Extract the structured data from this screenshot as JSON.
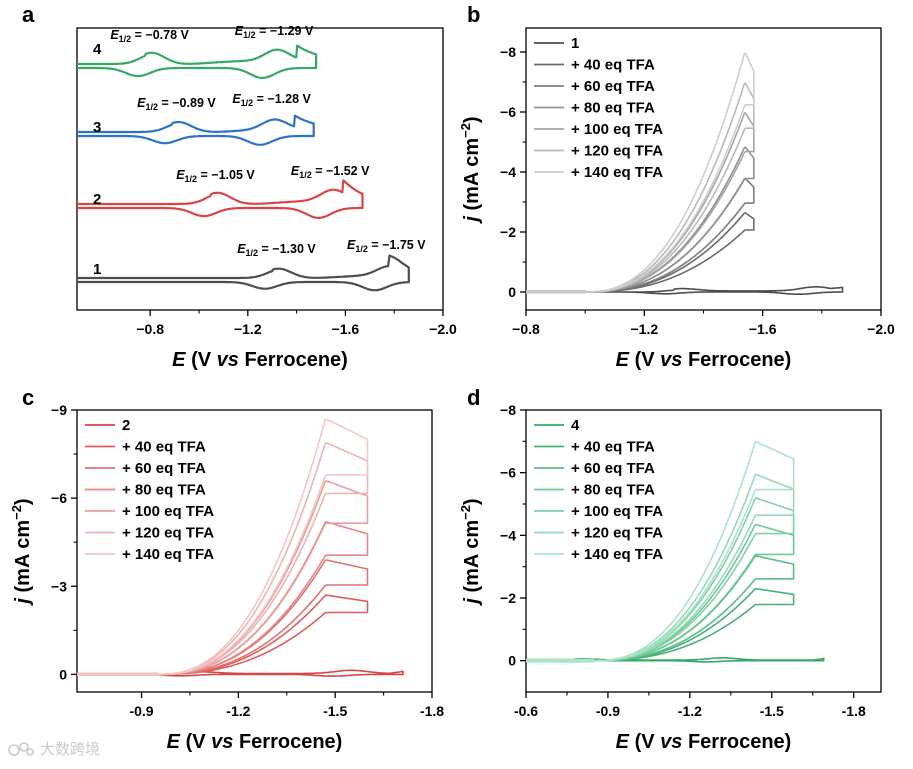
{
  "figure": {
    "watermark": "大数跨境",
    "colors": {
      "axis": "#000000",
      "gray": "#4d4d4d",
      "red": "#d94545",
      "blue": "#2e72c8",
      "green": "#35a866"
    }
  },
  "chart_data": [
    {
      "panel": "a",
      "type": "line",
      "title": "",
      "xlabel_parts": [
        "E",
        " (V ",
        "vs",
        " Ferrocene)"
      ],
      "ylabel": "",
      "xlim": [
        -0.5,
        -2.0
      ],
      "xticks": [
        -0.8,
        -1.2,
        -1.6,
        -2.0
      ],
      "xtick_labels": [
        "−0.8",
        "−1.2",
        "−1.6",
        "−2.0"
      ],
      "series": [
        {
          "name": "4",
          "color": "#35a866",
          "redox": [
            -0.78,
            -1.29
          ],
          "start": -0.5,
          "end": -1.48,
          "labels": [
            {
              "E": "E",
              "sub": "1/2",
              "value": " = −0.78 V"
            },
            {
              "E": "E",
              "sub": "1/2",
              "value": " = −1.29 V"
            }
          ]
        },
        {
          "name": "3",
          "color": "#2e72c8",
          "redox": [
            -0.89,
            -1.28
          ],
          "start": -0.5,
          "end": -1.47,
          "labels": [
            {
              "E": "E",
              "sub": "1/2",
              "value": " = −0.89 V"
            },
            {
              "E": "E",
              "sub": "1/2",
              "value": " = −1.28 V"
            }
          ]
        },
        {
          "name": "2",
          "color": "#d94545",
          "redox": [
            -1.05,
            -1.52
          ],
          "start": -0.5,
          "end": -1.67,
          "labels": [
            {
              "E": "E",
              "sub": "1/2",
              "value": " = −1.05 V"
            },
            {
              "E": "E",
              "sub": "1/2",
              "value": " = −1.52 V"
            }
          ]
        },
        {
          "name": "1",
          "color": "#4d4d4d",
          "redox": [
            -1.3,
            -1.75
          ],
          "start": -0.5,
          "end": -1.86,
          "labels": [
            {
              "E": "E",
              "sub": "1/2",
              "value": " = −1.30 V"
            },
            {
              "E": "E",
              "sub": "1/2",
              "value": " = −1.75 V"
            }
          ]
        }
      ]
    },
    {
      "panel": "b",
      "type": "line",
      "xlabel_parts": [
        "E",
        " (V ",
        "vs",
        " Ferrocene)"
      ],
      "ylabel_parts": [
        "j",
        " (mA cm",
        "−2",
        ")"
      ],
      "xlim": [
        -0.8,
        -2.0
      ],
      "ylim": [
        0.6,
        -8.8
      ],
      "xticks": [
        -0.8,
        -1.2,
        -1.6,
        -2.0
      ],
      "xtick_labels": [
        "−0.8",
        "−1.2",
        "−1.6",
        "−2.0"
      ],
      "yticks": [
        0,
        -2,
        -4,
        -6,
        -8
      ],
      "ytick_labels": [
        "0",
        "−2",
        "−4",
        "−6",
        "−8"
      ],
      "base": {
        "name": "1",
        "color": "#4d4d4d",
        "end": -1.87,
        "peaks": [
          -1.3,
          -1.75
        ],
        "amp": 0.15
      },
      "onset": -1.0,
      "vertex": -1.57,
      "peak_pos": -1.54,
      "series": [
        {
          "name": "+ 40 eq TFA",
          "color": "#6a6a6a",
          "jmax": -2.65
        },
        {
          "name": "+ 60 eq TFA",
          "color": "#7d7d7d",
          "jmax": -3.8
        },
        {
          "name": "+ 80 eq TFA",
          "color": "#919191",
          "jmax": -4.85
        },
        {
          "name": "+ 100 eq TFA",
          "color": "#a5a5a5",
          "jmax": -6.0
        },
        {
          "name": "+ 120 eq TFA",
          "color": "#b9b9b9",
          "jmax": -7.0
        },
        {
          "name": "+ 140 eq TFA",
          "color": "#cdcdcd",
          "jmax": -8.0
        }
      ]
    },
    {
      "panel": "c",
      "type": "line",
      "xlabel_parts": [
        "E",
        " (V ",
        "vs",
        " Ferrocene)"
      ],
      "ylabel_parts": [
        "j",
        " (mA cm",
        "−2",
        ")"
      ],
      "xlim": [
        -0.7,
        -1.8
      ],
      "ylim": [
        0.6,
        -9.0
      ],
      "xticks": [
        -0.9,
        -1.2,
        -1.5,
        -1.8
      ],
      "xtick_labels": [
        "-0.9",
        "-1.2",
        "-1.5",
        "-1.8"
      ],
      "yticks": [
        0,
        -3,
        -6,
        -9
      ],
      "ytick_labels": [
        "0",
        "−3",
        "−6",
        "−9"
      ],
      "base": {
        "name": "2",
        "color": "#d94545",
        "end": -1.71,
        "peaks": [
          -1.05,
          -1.52
        ],
        "amp": 0.12
      },
      "onset": -0.95,
      "vertex": -1.6,
      "peak_pos": -1.47,
      "series": [
        {
          "name": "+ 40 eq TFA",
          "color": "#dd5d5d",
          "jmax": -2.7
        },
        {
          "name": "+ 60 eq TFA",
          "color": "#e27272",
          "jmax": -3.9
        },
        {
          "name": "+ 80 eq TFA",
          "color": "#e68888",
          "jmax": -5.2
        },
        {
          "name": "+ 100 eq TFA",
          "color": "#ea9d9d",
          "jmax": -6.6
        },
        {
          "name": "+ 120 eq TFA",
          "color": "#efb2b2",
          "jmax": -7.9
        },
        {
          "name": "+ 140 eq TFA",
          "color": "#f3c6c6",
          "jmax": -8.7
        }
      ]
    },
    {
      "panel": "d",
      "type": "line",
      "xlabel_parts": [
        "E",
        " (V ",
        "vs",
        " Ferrocene)"
      ],
      "ylabel_parts": [
        "j",
        " (mA cm",
        "−2",
        ")"
      ],
      "xlim": [
        -0.6,
        -1.9
      ],
      "ylim": [
        1.0,
        -8.0
      ],
      "xticks": [
        -0.6,
        -0.9,
        -1.2,
        -1.5,
        -1.8
      ],
      "xtick_labels": [
        "-0.6",
        "-0.9",
        "-1.2",
        "-1.5",
        "-1.8"
      ],
      "yticks": [
        0,
        -2,
        -4,
        -6,
        -8
      ],
      "ytick_labels": [
        "0",
        "−2",
        "−4",
        "−6",
        "−8"
      ],
      "base": {
        "name": "4",
        "color": "#35a866",
        "end": -1.69,
        "peaks": [
          -0.78,
          -1.29
        ],
        "amp": 0.08
      },
      "onset": -0.85,
      "vertex": -1.58,
      "peak_pos": -1.44,
      "series": [
        {
          "name": "+ 40 eq TFA",
          "color": "#48b276",
          "jmax": -2.3
        },
        {
          "name": "+ 60 eq TFA",
          "color": "#5bbc86",
          "jmax": -3.35
        },
        {
          "name": "+ 80 eq TFA",
          "color": "#6fc696",
          "jmax": -4.35
        },
        {
          "name": "+ 100 eq TFA",
          "color": "#82d0a6",
          "jmax": -5.2
        },
        {
          "name": "+ 120 eq TFA",
          "color": "#95dab6",
          "jmax": -5.95
        },
        {
          "name": "+ 140 eq TFA",
          "color": "#a9e4c6",
          "jmax": -7.0
        }
      ]
    }
  ]
}
